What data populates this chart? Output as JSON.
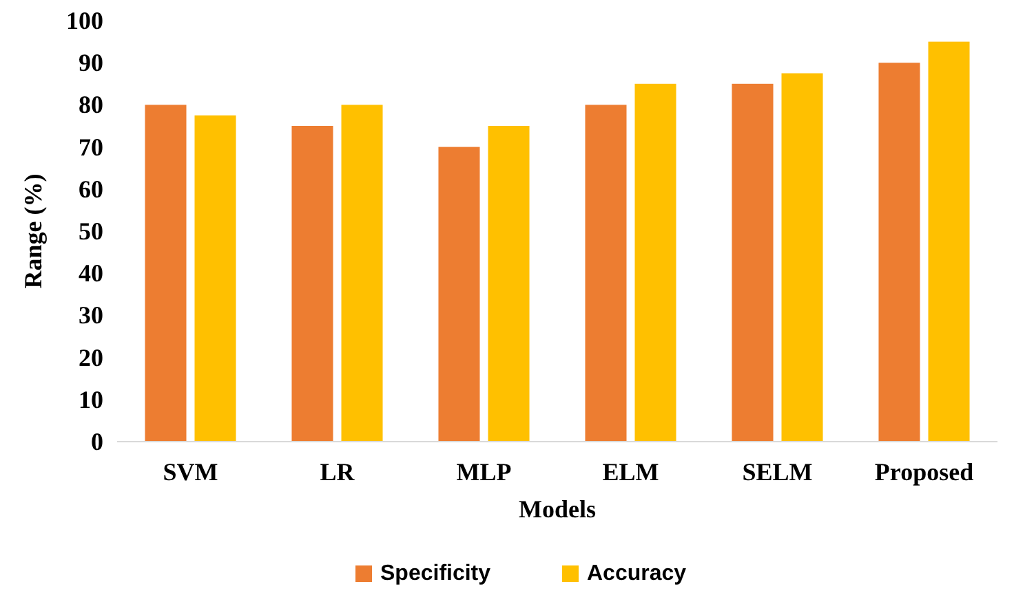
{
  "chart_data": {
    "type": "bar",
    "xlabel": "Models",
    "ylabel": "Range (%)",
    "categories": [
      "SVM",
      "LR",
      "MLP",
      "ELM",
      "SELM",
      "Proposed"
    ],
    "series": [
      {
        "name": "Specificity",
        "color": "#ed7d31",
        "values": [
          80,
          75,
          70,
          80,
          85,
          90
        ]
      },
      {
        "name": "Accuracy",
        "color": "#ffc000",
        "values": [
          77.5,
          80,
          75,
          85,
          87.5,
          95
        ]
      }
    ],
    "ylim": [
      0,
      100
    ],
    "yticks": [
      0,
      10,
      20,
      30,
      40,
      50,
      60,
      70,
      80,
      90,
      100
    ],
    "grid": false,
    "legend": "bottom"
  }
}
